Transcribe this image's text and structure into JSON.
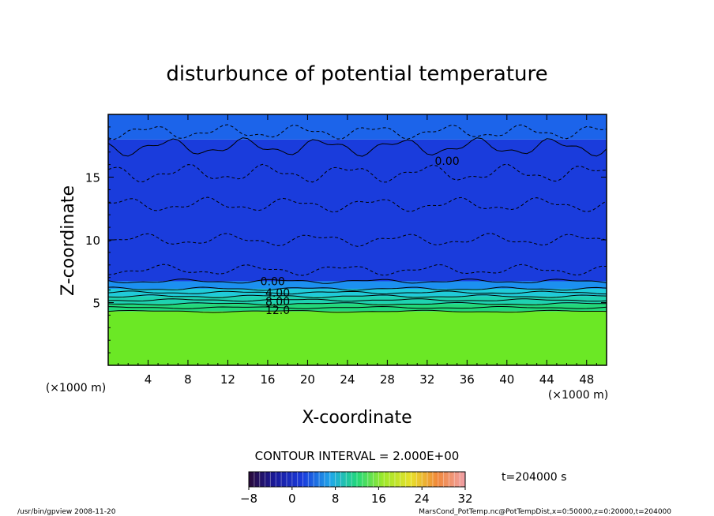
{
  "chart_data": {
    "type": "heatmap",
    "title": "disturbunce of potential temperature",
    "xlabel": "X-coordinate",
    "ylabel": "Z-coordinate",
    "x_unit": "(×1000 m)",
    "y_unit": "(×1000 m)",
    "xlim": [
      0,
      50
    ],
    "ylim": [
      0,
      20
    ],
    "x_ticks": [
      4,
      8,
      12,
      16,
      20,
      24,
      28,
      32,
      36,
      40,
      44,
      48
    ],
    "y_ticks": [
      5,
      10,
      15
    ],
    "contour_labels": [
      {
        "x": 16.5,
        "z": 6.7,
        "text": "0.00"
      },
      {
        "x": 17.0,
        "z": 5.8,
        "text": "4.00"
      },
      {
        "x": 17.0,
        "z": 5.1,
        "text": "8.00"
      },
      {
        "x": 17.0,
        "z": 4.4,
        "text": "12.0"
      },
      {
        "x": 34.0,
        "z": 16.3,
        "text": "0.00"
      }
    ],
    "contour_interval_text": "CONTOUR INTERVAL = 2.000E+00",
    "time_label": "t=204000  s",
    "colorbar": {
      "min": -8,
      "max": 32,
      "tick_values": [
        -8,
        0,
        8,
        16,
        24,
        32
      ],
      "tick_labels": [
        "−8",
        "0",
        "8",
        "16",
        "24",
        "32"
      ]
    },
    "field": {
      "levels": [
        {
          "z_min": 0.0,
          "z_max": 4.3,
          "value": 15,
          "color": "#6be825"
        },
        {
          "z_min": 4.3,
          "z_max": 4.9,
          "value": 12,
          "color": "#22d87a"
        },
        {
          "z_min": 4.9,
          "z_max": 5.5,
          "value": 9,
          "color": "#1fd2b0"
        },
        {
          "z_min": 5.5,
          "z_max": 6.1,
          "value": 6,
          "color": "#20cbd9"
        },
        {
          "z_min": 6.1,
          "z_max": 6.7,
          "value": 3,
          "color": "#1c90f0"
        },
        {
          "z_min": 6.7,
          "z_max": 18.0,
          "value": -1,
          "color": "#1a3cdc"
        },
        {
          "z_min": 18.0,
          "z_max": 20.0,
          "value": 0,
          "color": "#1c64ea"
        }
      ]
    }
  },
  "footer": {
    "left": "/usr/bin/gpview   2008-11-20",
    "right": "MarsCond_PotTemp.nc@PotTempDist,x=0:50000,z=0:20000,t=204000"
  },
  "colors": {
    "deep_blue": "#1a3cdc",
    "blue": "#1c64ea",
    "cyan": "#20cbd9",
    "green": "#6be825",
    "axis": "#000000"
  }
}
